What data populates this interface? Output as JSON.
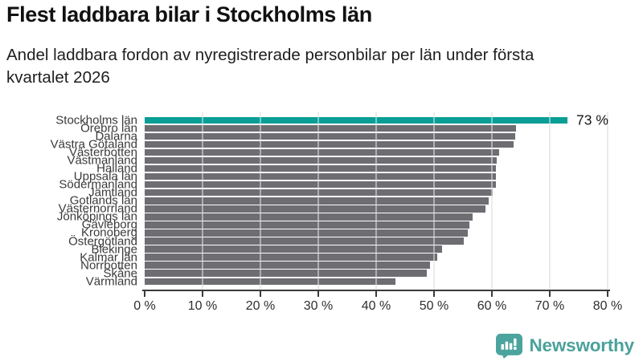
{
  "header": {
    "title": "Flest laddbara bilar i Stockholms län",
    "subtitle_lines": [
      "Andel laddbara fordon av nyregistrerade personbilar per län under första",
      "kvartalet 2026"
    ]
  },
  "chart_data": {
    "type": "bar",
    "orientation": "horizontal",
    "title": "Flest laddbara bilar i Stockholms län",
    "subtitle": "Andel laddbara fordon av nyregistrerade personbilar per län under första kvartalet 2026",
    "categories": [
      "Stockholms län",
      "Örebro län",
      "Dalarna",
      "Västra Götaland",
      "Västerbotten",
      "Västmanland",
      "Halland",
      "Uppsala län",
      "Södermanland",
      "Jämtland",
      "Gotlands län",
      "Västernorrland",
      "Jönköpings län",
      "Gävleborg",
      "Kronoberg",
      "Östergötland",
      "Blekinge",
      "Kalmar län",
      "Norrbotten",
      "Skåne",
      "Värmland"
    ],
    "values": [
      73,
      64.2,
      64,
      63.8,
      61.2,
      60.9,
      60.7,
      60.7,
      60.7,
      60.1,
      59.4,
      58.9,
      56.6,
      56.1,
      55.9,
      55.1,
      51.4,
      50.5,
      49.3,
      48.8,
      43.4
    ],
    "unit": "%",
    "xlim": [
      0,
      80
    ],
    "x_ticks": [
      "0 %",
      "10 %",
      "20 %",
      "30 %",
      "40 %",
      "50 %",
      "60 %",
      "70 %",
      "80 %"
    ],
    "grid": true,
    "legend": "none",
    "highlight_index": 0,
    "highlight_color": "#0a9e97",
    "bar_color": "#6d6d72",
    "gridline_color": "#d9dddd",
    "axis_color": "#3b3b3b",
    "annotation": {
      "text": "73 %",
      "bar": "Stockholms län",
      "value": 73
    }
  },
  "footer": {
    "brand": "Newsworthy",
    "brand_color": "#4ba19b",
    "logo_icon": "bar-chart-speech-bubble"
  }
}
